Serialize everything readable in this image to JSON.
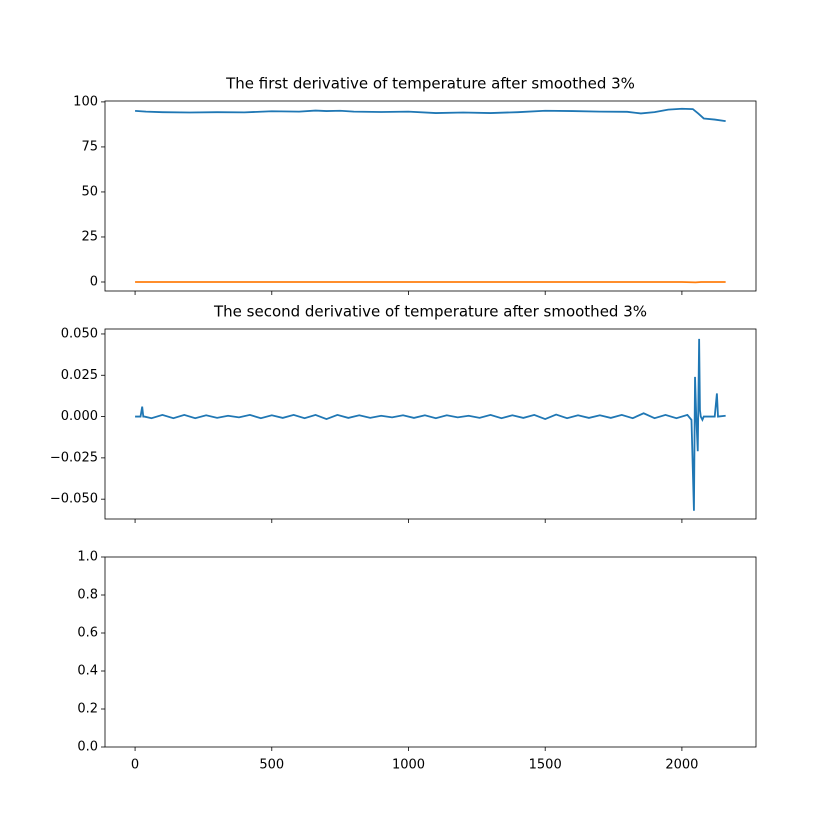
{
  "chart_data": [
    {
      "type": "line",
      "title": "The first derivative of temperature after smoothed 3%",
      "xlim": [
        -110,
        2271
      ],
      "xticks": [
        0,
        500,
        1000,
        1500,
        2000
      ],
      "ylim": [
        -5,
        100.5
      ],
      "yticks": [
        0,
        25,
        50,
        75,
        100
      ],
      "series": [
        {
          "color": "#1f77b4",
          "x": [
            0,
            40,
            100,
            200,
            300,
            400,
            500,
            600,
            660,
            700,
            750,
            800,
            900,
            1000,
            1100,
            1200,
            1300,
            1400,
            1500,
            1600,
            1700,
            1800,
            1850,
            1900,
            1950,
            2000,
            2040,
            2060,
            2080,
            2120,
            2160
          ],
          "values": [
            95,
            94.6,
            94.3,
            94.1,
            94.3,
            94.2,
            94.8,
            94.6,
            95.2,
            94.9,
            95.1,
            94.6,
            94.4,
            94.6,
            93.8,
            94.1,
            93.8,
            94.3,
            95.1,
            94.9,
            94.6,
            94.5,
            93.6,
            94.3,
            95.7,
            96.2,
            96,
            93.5,
            90.8,
            90.2,
            89.3
          ]
        },
        {
          "color": "#ff7f0e",
          "x": [
            0,
            500,
            1000,
            1500,
            2000,
            2050,
            2070,
            2100,
            2160
          ],
          "values": [
            0,
            0,
            0,
            0,
            0,
            -0.2,
            0,
            0,
            0
          ]
        }
      ]
    },
    {
      "type": "line",
      "title": "The second derivative of temperature after smoothed 3%",
      "xlim": [
        -110,
        2271
      ],
      "xticks": [
        0,
        500,
        1000,
        1500,
        2000
      ],
      "ylim": [
        -0.062,
        0.053
      ],
      "yticks": [
        {
          "value": -0.05,
          "label": "−0.050"
        },
        {
          "value": -0.025,
          "label": "−0.025"
        },
        {
          "value": 0,
          "label": "0.000"
        },
        {
          "value": 0.025,
          "label": "0.025"
        },
        {
          "value": 0.05,
          "label": "0.050"
        }
      ],
      "series": [
        {
          "color": "#1f77b4",
          "x": [
            0,
            20,
            26,
            30,
            34,
            60,
            100,
            140,
            180,
            220,
            260,
            300,
            340,
            380,
            420,
            460,
            500,
            540,
            580,
            620,
            660,
            700,
            740,
            780,
            820,
            860,
            900,
            940,
            980,
            1020,
            1060,
            1100,
            1140,
            1180,
            1220,
            1260,
            1300,
            1340,
            1380,
            1420,
            1460,
            1500,
            1540,
            1580,
            1620,
            1660,
            1700,
            1740,
            1780,
            1820,
            1860,
            1900,
            1940,
            1980,
            2020,
            2035,
            2044,
            2048,
            2052,
            2058,
            2063,
            2066,
            2069,
            2075,
            2080,
            2120,
            2128,
            2132,
            2160
          ],
          "values": [
            0,
            0,
            0.006,
            0,
            0,
            -0.001,
            0.001,
            -0.001,
            0.001,
            -0.001,
            0.0008,
            -0.0008,
            0.0005,
            -0.0005,
            0.001,
            -0.001,
            0.0008,
            -0.0008,
            0.001,
            -0.001,
            0.001,
            -0.0015,
            0.001,
            -0.0008,
            0.0008,
            -0.0008,
            0.0005,
            -0.0005,
            0.0008,
            -0.0008,
            0.0008,
            -0.001,
            0.0008,
            -0.0005,
            0.0005,
            -0.0008,
            0.001,
            -0.001,
            0.0008,
            -0.0008,
            0.001,
            -0.0015,
            0.0012,
            -0.001,
            0.0008,
            -0.0008,
            0.0008,
            -0.0008,
            0.001,
            -0.001,
            0.002,
            -0.001,
            0.001,
            -0.001,
            0.001,
            -0.002,
            -0.057,
            0.024,
            0.002,
            -0.021,
            0.047,
            0.004,
            0,
            -0.002,
            0,
            0,
            0.014,
            0,
            0.0005
          ]
        }
      ]
    },
    {
      "type": "line",
      "xlim": [
        -110,
        2271
      ],
      "xticks": [
        0,
        500,
        1000,
        1500,
        2000
      ],
      "ylim": [
        0,
        1
      ],
      "yticks": [
        {
          "value": 0,
          "label": "0.0"
        },
        0.2,
        0.4,
        0.6,
        0.8,
        {
          "value": 1,
          "label": "1.0"
        }
      ],
      "series": []
    }
  ]
}
